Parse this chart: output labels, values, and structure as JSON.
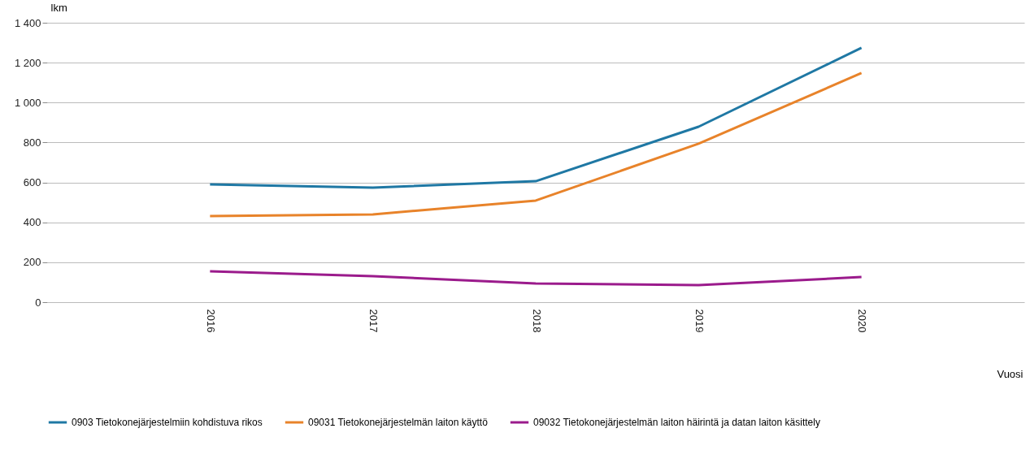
{
  "chart_data": {
    "type": "line",
    "xlabel": "Vuosi",
    "ylabel": "lkm",
    "categories": [
      "2016",
      "2017",
      "2018",
      "2019",
      "2020"
    ],
    "series": [
      {
        "name": "0903 Tietokonejärjestelmiin kohdistuva rikos",
        "color": "#1f78a4",
        "values": [
          590,
          574,
          606,
          879,
          1274
        ]
      },
      {
        "name": "09031 Tietokonejärjestelmän laiton käyttö",
        "color": "#e8832a",
        "values": [
          431,
          440,
          509,
          794,
          1148
        ]
      },
      {
        "name": "09032 Tietokonejärjestelmän laiton häirintä ja datan laiton käsittely",
        "color": "#9b1b8c",
        "values": [
          155,
          130,
          94,
          85,
          126
        ]
      }
    ],
    "ylim": [
      0,
      1400
    ],
    "yticks": [
      0,
      200,
      400,
      600,
      800,
      {
        "value": 1000,
        "label": "1 000"
      },
      {
        "value": 1200,
        "label": "1 200"
      },
      {
        "value": 1400,
        "label": "1 400"
      }
    ],
    "grid": "y",
    "legend": "bottom",
    "marker": "none",
    "line_style": "solid"
  }
}
